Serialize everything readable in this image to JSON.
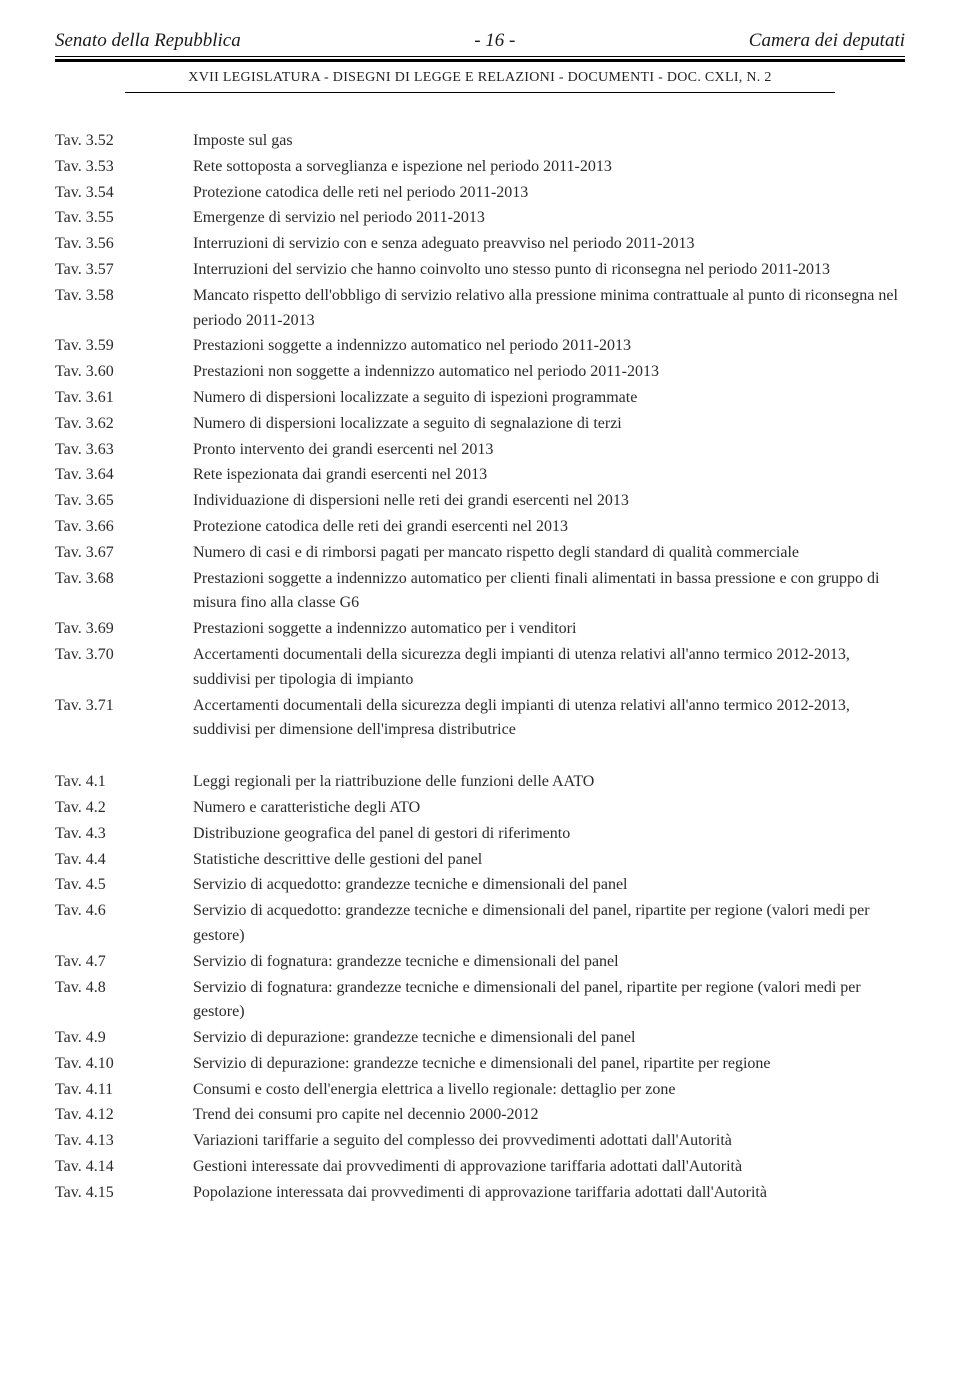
{
  "header": {
    "left": "Senato della Repubblica",
    "center": "- 16 -",
    "right": "Camera dei deputati",
    "sub": "XVII LEGISLATURA - DISEGNI DI LEGGE E RELAZIONI - DOCUMENTI - DOC. CXLI, N. 2"
  },
  "section1": [
    {
      "k": "Tav. 3.52",
      "d": "Imposte sul gas"
    },
    {
      "k": "Tav. 3.53",
      "d": "Rete sottoposta a sorveglianza e ispezione nel periodo 2011-2013"
    },
    {
      "k": "Tav. 3.54",
      "d": "Protezione catodica delle reti nel periodo 2011-2013"
    },
    {
      "k": "Tav. 3.55",
      "d": "Emergenze di servizio nel periodo 2011-2013"
    },
    {
      "k": "Tav. 3.56",
      "d": "Interruzioni di servizio con e senza adeguato preavviso nel periodo 2011-2013"
    },
    {
      "k": "Tav. 3.57",
      "d": "Interruzioni del servizio che hanno coinvolto uno stesso punto di riconsegna nel periodo 2011-2013"
    },
    {
      "k": "Tav. 3.58",
      "d": "Mancato rispetto dell'obbligo di servizio relativo alla pressione minima contrattuale al punto di riconsegna nel periodo 2011-2013"
    },
    {
      "k": "Tav. 3.59",
      "d": "Prestazioni soggette a indennizzo automatico nel periodo 2011-2013"
    },
    {
      "k": "Tav. 3.60",
      "d": "Prestazioni non soggette a indennizzo automatico nel periodo 2011-2013"
    },
    {
      "k": "Tav. 3.61",
      "d": "Numero di dispersioni localizzate a seguito di ispezioni programmate"
    },
    {
      "k": "Tav. 3.62",
      "d": "Numero di dispersioni localizzate a seguito di segnalazione di terzi"
    },
    {
      "k": "Tav. 3.63",
      "d": "Pronto intervento dei grandi esercenti nel 2013"
    },
    {
      "k": "Tav. 3.64",
      "d": "Rete ispezionata dai grandi esercenti nel 2013"
    },
    {
      "k": "Tav. 3.65",
      "d": "Individuazione di dispersioni nelle reti dei grandi esercenti nel 2013"
    },
    {
      "k": "Tav. 3.66",
      "d": "Protezione catodica delle reti dei grandi esercenti nel 2013"
    },
    {
      "k": "Tav. 3.67",
      "d": "Numero di casi e di rimborsi pagati per mancato rispetto degli standard di qualità commerciale"
    },
    {
      "k": "Tav. 3.68",
      "d": "Prestazioni soggette a indennizzo automatico per clienti finali alimentati in bassa pressione e con gruppo di misura fino alla classe G6"
    },
    {
      "k": "Tav. 3.69",
      "d": "Prestazioni soggette a indennizzo automatico per i venditori"
    },
    {
      "k": "Tav. 3.70",
      "d": "Accertamenti documentali della sicurezza degli impianti di utenza relativi all'anno termico 2012-2013, suddivisi per tipologia di impianto"
    },
    {
      "k": "Tav. 3.71",
      "d": "Accertamenti documentali della sicurezza degli impianti di utenza relativi all'anno termico 2012-2013, suddivisi per dimensione dell'impresa distributrice"
    }
  ],
  "section2": [
    {
      "k": "Tav. 4.1",
      "d": "Leggi regionali per la riattribuzione delle funzioni delle AATO"
    },
    {
      "k": "Tav. 4.2",
      "d": "Numero e caratteristiche degli ATO"
    },
    {
      "k": "Tav. 4.3",
      "d": "Distribuzione geografica del panel di gestori di riferimento"
    },
    {
      "k": "Tav. 4.4",
      "d": "Statistiche descrittive delle gestioni del panel"
    },
    {
      "k": "Tav. 4.5",
      "d": "Servizio di acquedotto: grandezze tecniche e dimensionali del panel"
    },
    {
      "k": "Tav. 4.6",
      "d": "Servizio di acquedotto: grandezze tecniche e dimensionali del panel, ripartite per regione (valori medi per gestore)"
    },
    {
      "k": "Tav. 4.7",
      "d": "Servizio di fognatura: grandezze tecniche e dimensionali del panel"
    },
    {
      "k": "Tav. 4.8",
      "d": "Servizio di fognatura: grandezze tecniche e dimensionali del panel, ripartite per regione (valori medi per gestore)"
    },
    {
      "k": "Tav. 4.9",
      "d": "Servizio di depurazione: grandezze tecniche e dimensionali del panel"
    },
    {
      "k": "Tav. 4.10",
      "d": "Servizio di depurazione: grandezze tecniche e dimensionali del panel, ripartite per regione"
    },
    {
      "k": "Tav. 4.11",
      "d": "Consumi e costo dell'energia elettrica a livello regionale: dettaglio per zone"
    },
    {
      "k": "Tav. 4.12",
      "d": "Trend dei consumi pro capite nel decennio 2000-2012"
    },
    {
      "k": "Tav. 4.13",
      "d": "Variazioni tariffarie a seguito del complesso dei provvedimenti adottati dall'Autorità"
    },
    {
      "k": "Tav. 4.14",
      "d": "Gestioni interessate dai provvedimenti di approvazione tariffaria adottati dall'Autorità"
    },
    {
      "k": "Tav. 4.15",
      "d": "Popolazione interessata dai provvedimenti di approvazione tariffaria adottati dall'Autorità"
    }
  ]
}
